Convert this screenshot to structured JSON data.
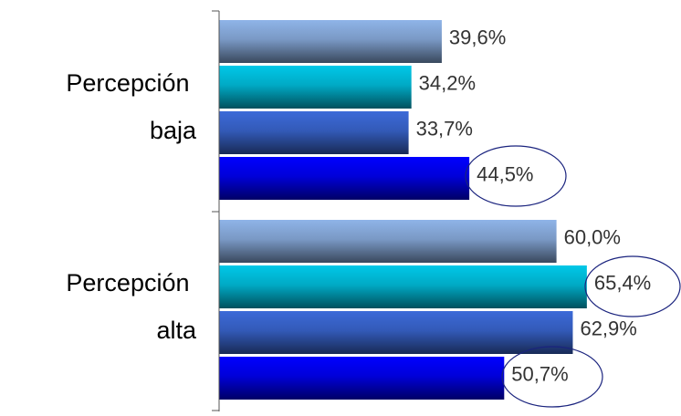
{
  "chart_data": {
    "type": "barh",
    "categories": [
      "Percepción baja",
      "Percepción alta"
    ],
    "series": [
      {
        "color": "#8fb4e8",
        "values": [
          39.6,
          60.0
        ],
        "value_labels": [
          "39,6%",
          "60,0%"
        ]
      },
      {
        "color": "#00c8e8",
        "values": [
          34.2,
          65.4
        ],
        "value_labels": [
          "34,2%",
          "65,4%"
        ]
      },
      {
        "color": "#3c6ad8",
        "values": [
          33.7,
          62.9
        ],
        "value_labels": [
          "33,7%",
          "62,9%"
        ]
      },
      {
        "color": "#0000ff",
        "values": [
          44.5,
          50.7
        ],
        "value_labels": [
          "44,5%",
          "50,7%"
        ]
      }
    ]
  }
}
